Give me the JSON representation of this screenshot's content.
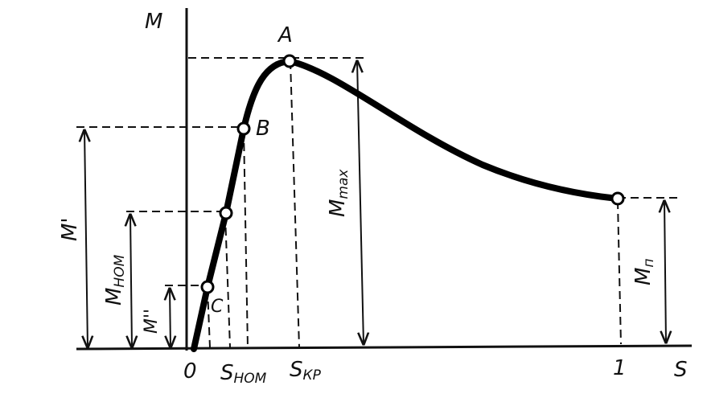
{
  "axes": {
    "y_label": "M",
    "x_label": "S",
    "origin_label": "0",
    "x_one_label": "1"
  },
  "points": {
    "a": "A",
    "b": "B",
    "c": "C"
  },
  "x_ticks": {
    "s_nom_main": "S",
    "s_nom_sub": "НОМ",
    "s_kr_main": "S",
    "s_kr_sub": "КР"
  },
  "dimensions": {
    "m_prime": "M'",
    "m_double_prime": "M''",
    "m_nom_main": "M",
    "m_nom_sub": "НОМ",
    "m_max_main": "M",
    "m_max_sub": "max",
    "m_n_main": "M",
    "m_n_sub": "п"
  }
}
